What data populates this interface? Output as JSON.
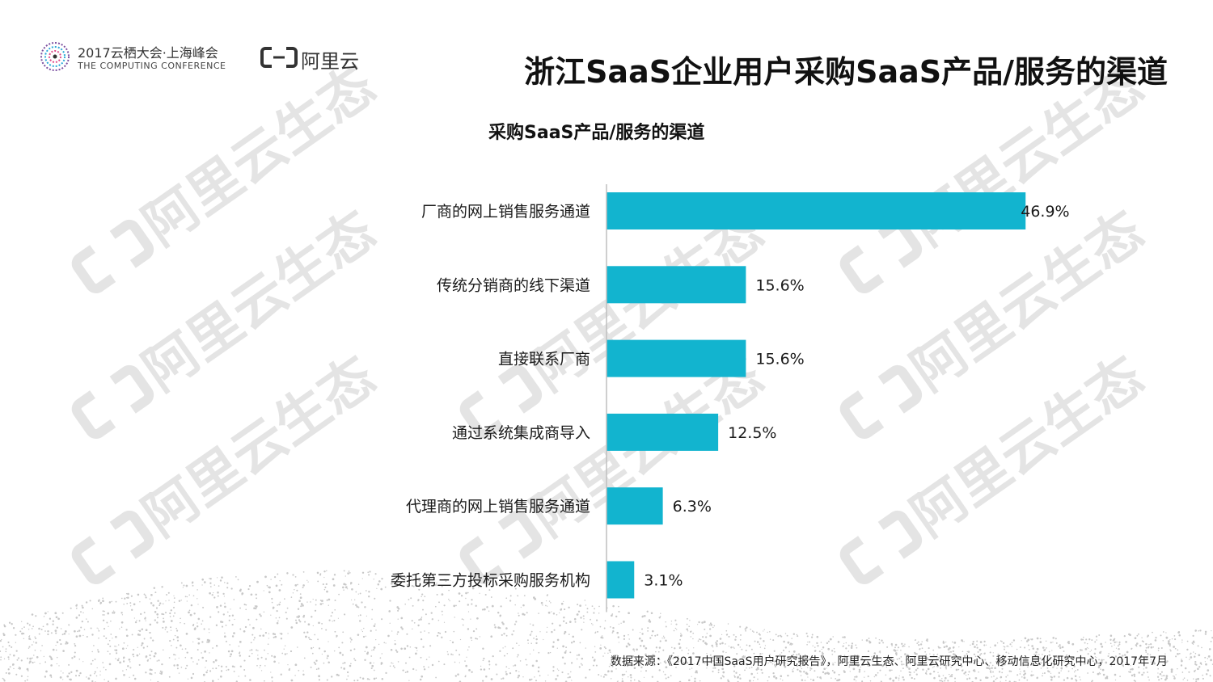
{
  "header": {
    "conference_title": "2017云栖大会·上海峰会",
    "conference_subtitle": "THE COMPUTING CONFERENCE",
    "brand_name": "阿里云",
    "page_title": "浙江SaaS企业用户采购SaaS产品/服务的渠道"
  },
  "watermark": {
    "text": "阿里云生态"
  },
  "footer": {
    "source": "数据来源：《2017中国SaaS用户研究报告》，阿里云生态、阿里云研究中心、移动信息化研究中心，2017年7月"
  },
  "colors": {
    "bar": "#12b4cf",
    "axis": "#bfbfbf",
    "text": "#1a1a1a"
  },
  "chart_data": {
    "type": "bar",
    "orientation": "horizontal",
    "title": "采购SaaS产品/服务的渠道",
    "unit": "%",
    "xlim": [
      0,
      50
    ],
    "categories": [
      "厂商的网上销售服务通道",
      "传统分销商的线下渠道",
      "直接联系厂商",
      "通过系统集成商导入",
      "代理商的网上销售服务通道",
      "委托第三方投标采购服务机构"
    ],
    "values": [
      46.9,
      15.6,
      15.6,
      12.5,
      6.3,
      3.1
    ],
    "data_labels": [
      "46.9%",
      "15.6%",
      "15.6%",
      "12.5%",
      "6.3%",
      "3.1%"
    ]
  }
}
